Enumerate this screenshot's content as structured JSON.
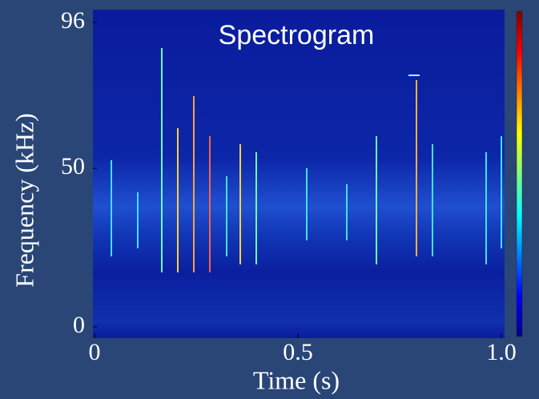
{
  "chart_data": {
    "type": "spectrogram",
    "title": "Spectrogram",
    "x_label": "Time (s)",
    "y_label": "Frequency (kHz)",
    "xlim": [
      0,
      1
    ],
    "ylim": [
      0,
      96
    ],
    "xticks": [
      0,
      0.5,
      {
        "value": 1,
        "label": "1.0"
      }
    ],
    "yticks": [
      0,
      50,
      96
    ]
  }
}
